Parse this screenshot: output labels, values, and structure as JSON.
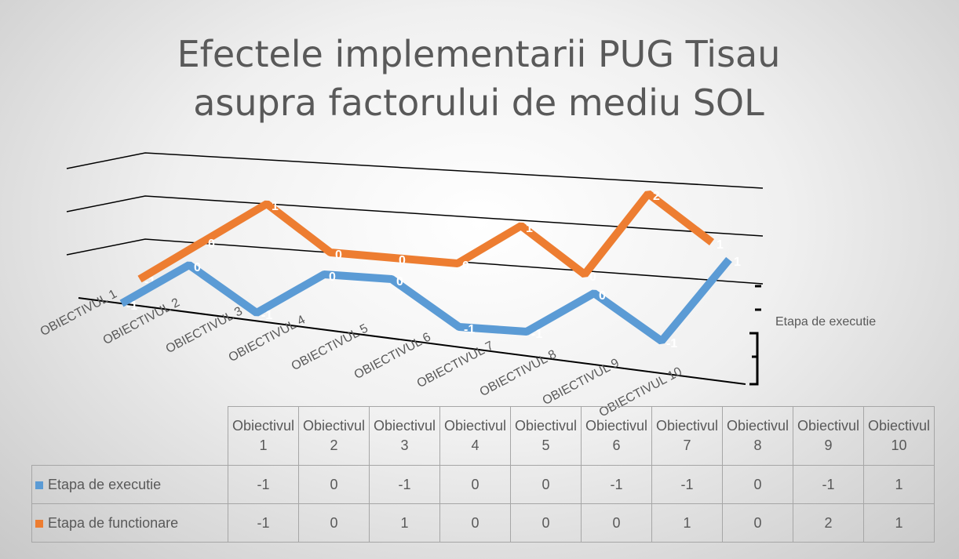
{
  "chart_data": {
    "type": "line3d",
    "title": "Efectele implementarii PUG Tisau asupra factorului de mediu SOL",
    "categories": [
      "OBIECTIVUL 1",
      "OBIECTIVUL 2",
      "OBIECTIVUL 3",
      "OBIECTIVUL 4",
      "OBIECTIVUL 5",
      "OBIECTIVUL 6",
      "OBIECTIVUL 7",
      "OBIECTIVUL 8",
      "OBIECTIVUL 9",
      "OBIECTIVUL 10"
    ],
    "table_categories": [
      "Obiectivul 1",
      "Obiectivul 2",
      "Obiectivul 3",
      "Obiectivul 4",
      "Obiectivul 5",
      "Obiectivul 6",
      "Obiectivul 7",
      "Obiectivul 8",
      "Obiectivul 9",
      "Obiectivul 10"
    ],
    "series": [
      {
        "name": "Etapa de executie",
        "color": "#5b9bd5",
        "values": [
          -1,
          0,
          -1,
          0,
          0,
          -1,
          -1,
          0,
          -1,
          1
        ]
      },
      {
        "name": "Etapa de functionare",
        "color": "#ed7d31",
        "values": [
          -1,
          0,
          1,
          0,
          0,
          0,
          1,
          0,
          2,
          1
        ]
      }
    ],
    "ylim": [
      -1,
      2
    ],
    "yticks": [
      -1,
      0,
      1,
      2
    ],
    "grid": true
  }
}
